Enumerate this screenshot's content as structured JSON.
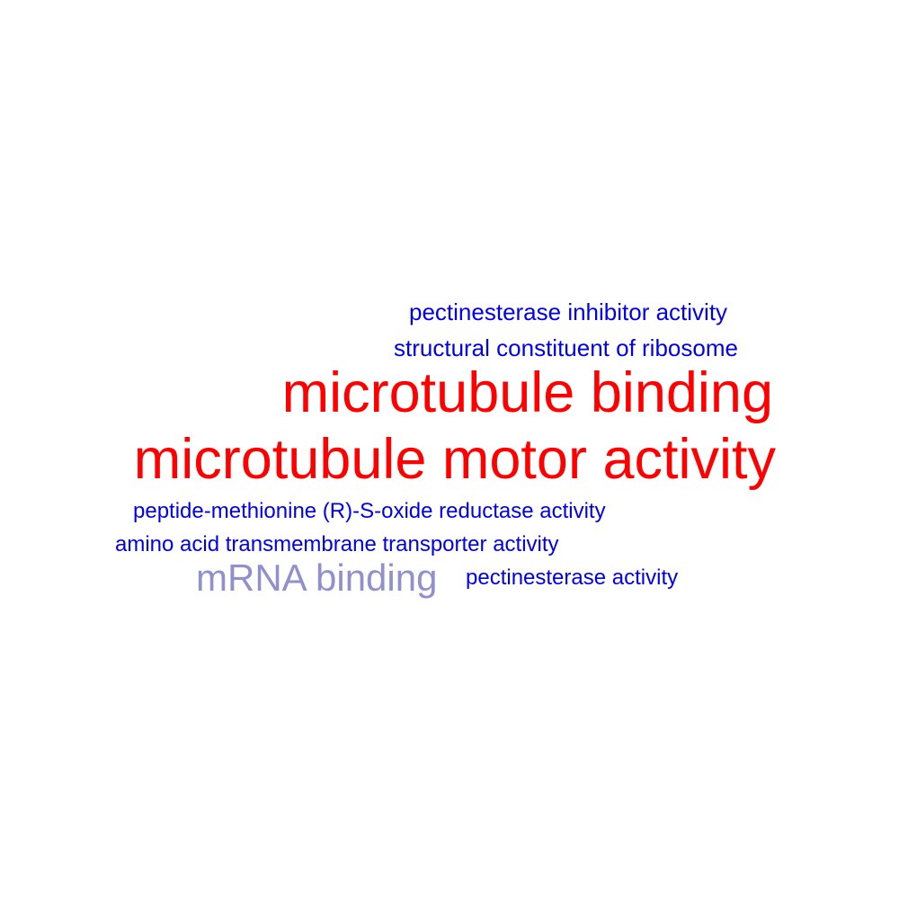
{
  "colors": {
    "background": "#ffffff",
    "red": "#ff0000",
    "blue": "#0000ee",
    "lavender": "#9090cc"
  },
  "words": [
    {
      "id": "pectinesterase-inhibitor",
      "text": "pectinesterase inhibitor activity",
      "color": "#0000ee"
    },
    {
      "id": "structural-constituent",
      "text": "structural constituent of ribosome",
      "color": "#0000ee"
    },
    {
      "id": "microtubule-binding",
      "text": "microtubule binding",
      "color": "#ff0000"
    },
    {
      "id": "microtubule-motor",
      "text": "microtubule motor activity",
      "color": "#ff0000"
    },
    {
      "id": "peptide-methionine",
      "text": "peptide-methionine (R)-S-oxide reductase activity",
      "color": "#0000ee"
    },
    {
      "id": "amino-acid",
      "text": "amino acid transmembrane transporter activity",
      "color": "#0000ee"
    },
    {
      "id": "mrna-binding",
      "text": "mRNA binding",
      "color": "#9090cc"
    },
    {
      "id": "pectinesterase-activity",
      "text": "pectinesterase activity",
      "color": "#0000ee"
    }
  ]
}
